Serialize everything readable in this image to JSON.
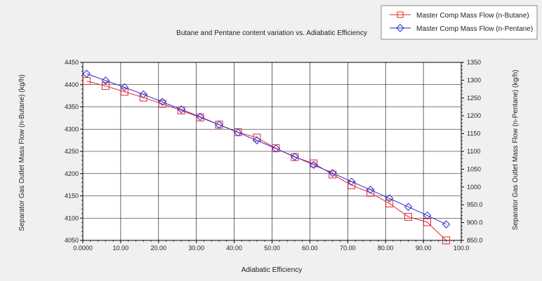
{
  "chart_data": {
    "type": "line",
    "title": "Butane and Pentane content variation vs. Adiabatic Efficiency",
    "xlabel": "Adiabatic Efficiency",
    "ylabel_left": "Separator Gas Outlet Mass Flow (n-Butane) (kg/h)",
    "ylabel_right": "Separator Gas Outlet Mass Flow (n-Pentane) (kg/h)",
    "xlim": [
      0,
      100
    ],
    "ylim_left": [
      4050,
      4450
    ],
    "ylim_right": [
      850,
      1350
    ],
    "x_ticks": [
      "0.0000",
      "10.00",
      "20.00",
      "30.00",
      "40.00",
      "50.00",
      "60.00",
      "70.00",
      "80.00",
      "90.00",
      "100.0"
    ],
    "y_left_ticks": [
      "4050",
      "4100",
      "4150",
      "4200",
      "4250",
      "4300",
      "4350",
      "4400",
      "4450"
    ],
    "y_right_ticks": [
      "850.0",
      "900.0",
      "950.0",
      "1000",
      "1050",
      "1100",
      "1150",
      "1200",
      "1250",
      "1300",
      "1350"
    ],
    "grid": true,
    "legend_position": "top-right",
    "series": [
      {
        "name": "Master Comp Mass Flow (n-Butane)",
        "axis": "left",
        "color": "#e0282e",
        "marker": "square",
        "x": [
          1,
          6,
          11,
          16,
          21,
          26,
          31,
          36,
          41,
          46,
          51,
          56,
          61,
          66,
          71,
          76,
          81,
          86,
          91,
          96
        ],
        "y": [
          4408,
          4397,
          4384,
          4371,
          4357,
          4342,
          4326,
          4310,
          4293,
          4281,
          4257,
          4237,
          4223,
          4198,
          4174,
          4157,
          4133,
          4103,
          4091,
          4050
        ]
      },
      {
        "name": "Master Comp Mass Flow (n-Pentane)",
        "axis": "right",
        "color": "#2a2ad0",
        "marker": "diamond",
        "x": [
          1,
          6,
          11,
          16,
          21,
          26,
          31,
          36,
          41,
          46,
          51,
          56,
          61,
          66,
          71,
          76,
          81,
          86,
          91,
          96
        ],
        "y": [
          1318,
          1299,
          1280,
          1260,
          1239,
          1218,
          1197,
          1175,
          1153,
          1131,
          1108,
          1085,
          1062,
          1039,
          1015,
          992,
          968,
          944,
          920,
          895
        ]
      }
    ]
  }
}
